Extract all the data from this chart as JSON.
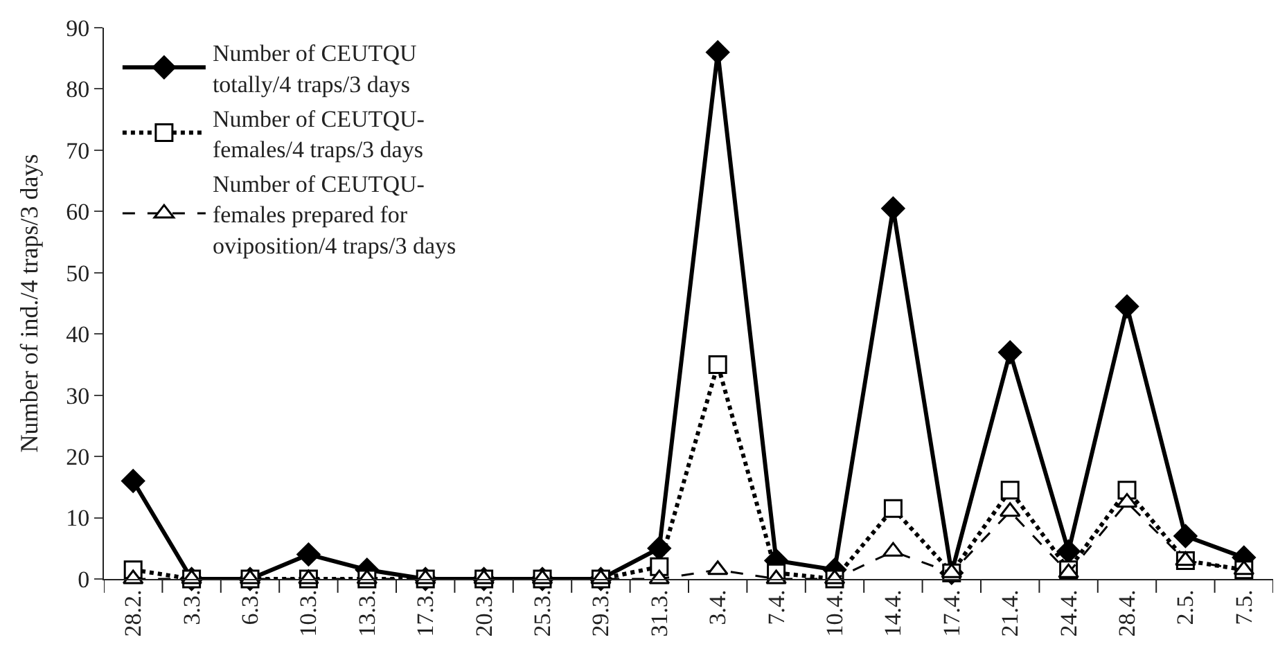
{
  "chart_data": {
    "type": "line",
    "ylabel": "Number of ind./4 traps/3 days",
    "categories": [
      "28.2.",
      "3.3.",
      "6.3.",
      "10.3.",
      "13.3.",
      "17.3.",
      "20.3.",
      "25.3.",
      "29.3.",
      "31.3.",
      "3.4.",
      "7.4.",
      "10.4.",
      "14.4.",
      "17.4.",
      "21.4.",
      "24.4.",
      "28.4.",
      "2.5.",
      "7.5."
    ],
    "series": [
      {
        "name": "Number of CEUTQU\ntotally/4 traps/3 days",
        "color": "#000000",
        "marker": "diamond",
        "line_style": "solid",
        "values": [
          16,
          0,
          0,
          4,
          1.5,
          0,
          0,
          0,
          0,
          5,
          86,
          3,
          1.5,
          60.5,
          1,
          37,
          4.5,
          44.5,
          7,
          3.5
        ]
      },
      {
        "name": "Number of CEUTQU-\nfemales/4 traps/3 days",
        "color": "#000000",
        "marker": "square",
        "line_style": "dotted",
        "values": [
          1.5,
          0,
          0,
          0,
          0,
          0,
          0,
          0,
          0,
          2,
          35,
          1,
          0,
          11.5,
          1,
          14.5,
          1.5,
          14.5,
          3,
          1.5
        ]
      },
      {
        "name": "Number of CEUTQU-\nfemales prepared for\noviposition/4 traps/3 days",
        "color": "#000000",
        "marker": "triangle",
        "line_style": "dashed",
        "values": [
          0,
          0,
          0,
          0,
          0,
          0,
          0,
          0,
          0,
          0,
          1.5,
          0,
          0,
          4.5,
          1,
          11,
          1,
          12.5,
          3,
          1.5
        ]
      }
    ],
    "ylim": [
      0,
      90
    ],
    "yticks": [
      0,
      10,
      20,
      30,
      40,
      50,
      60,
      70,
      80,
      90
    ],
    "legend": "top left"
  }
}
